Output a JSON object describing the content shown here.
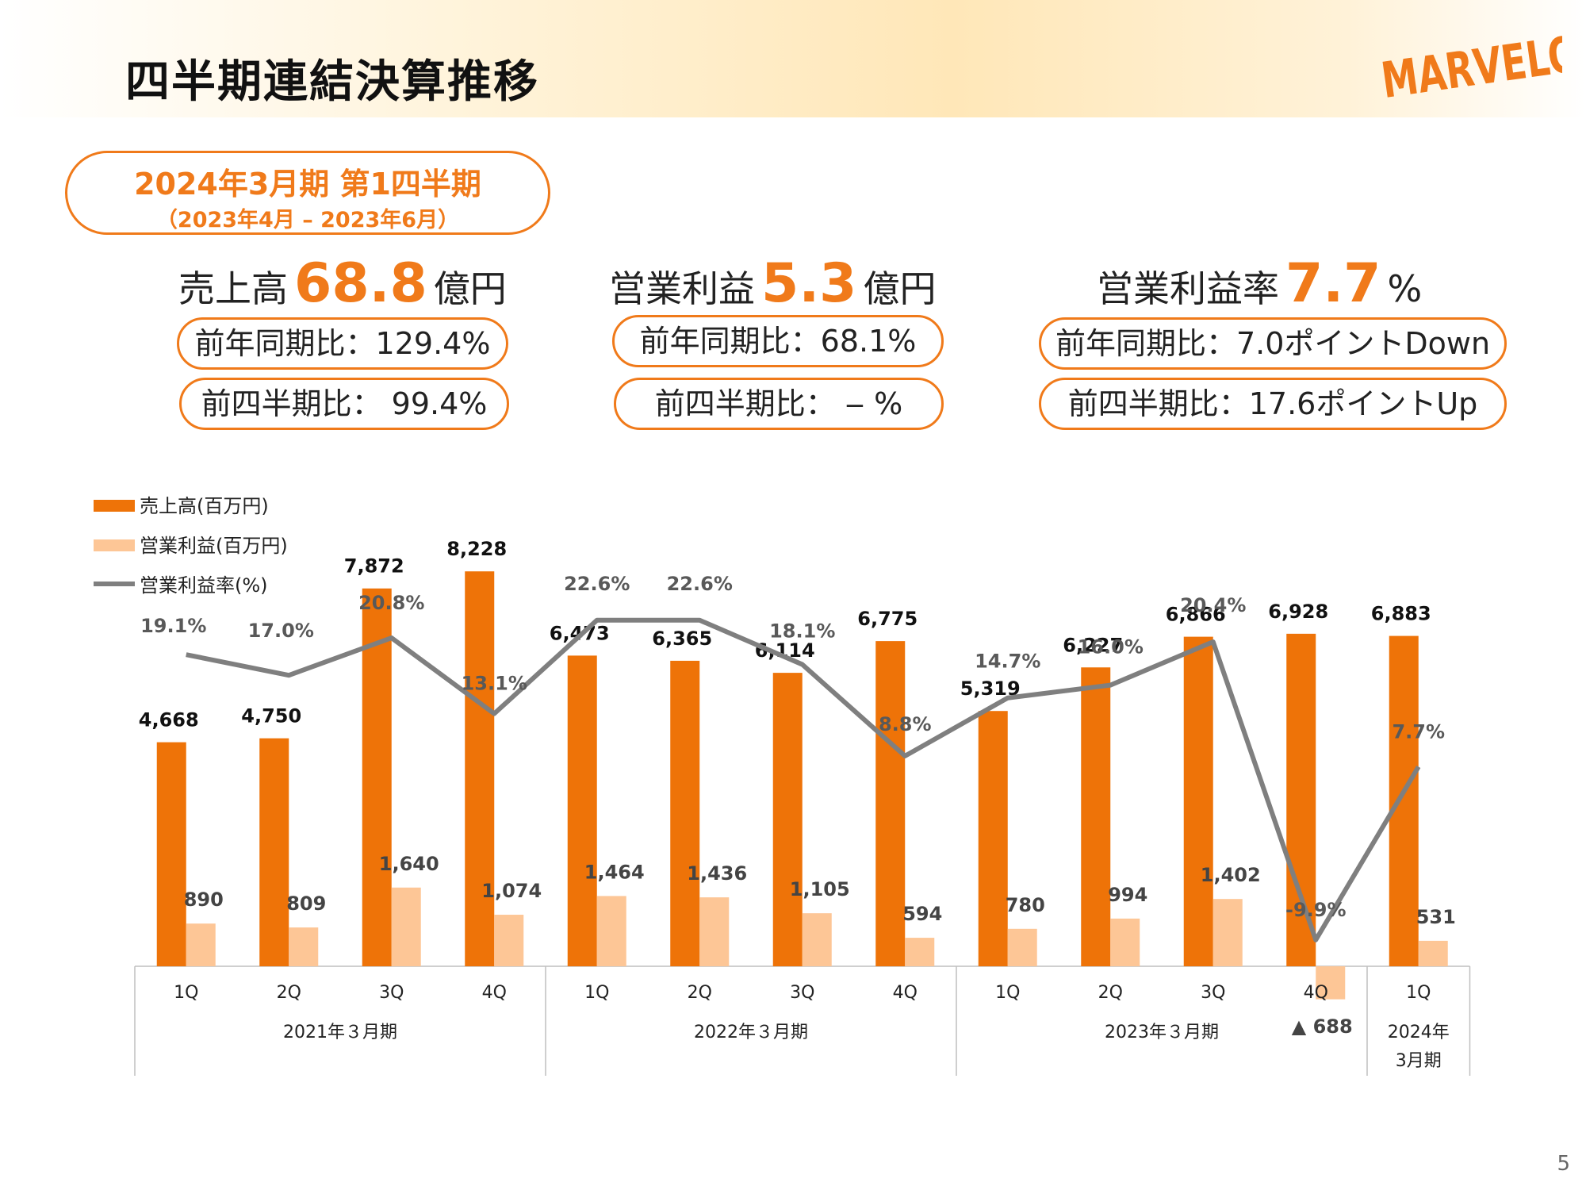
{
  "header": {
    "title": "四半期連結決算推移",
    "logo_text": "MARVELOUS!"
  },
  "period": {
    "main": "2024年3月期 第1四半期",
    "sub": "（2023年4月 – 2023年6月）"
  },
  "kpis": [
    {
      "label": "売上高",
      "value": "68.8",
      "unit": "億円",
      "yoy": "前年同期比：129.4%",
      "qoq": "前四半期比： 99.4%"
    },
    {
      "label": "営業利益",
      "value": "5.3",
      "unit": "億円",
      "yoy": "前年同期比：68.1%",
      "qoq": "前四半期比： ‒ %"
    },
    {
      "label": "営業利益率",
      "value": "7.7",
      "unit": "%",
      "yoy": "前年同期比：7.0ポイントDown",
      "qoq": "前四半期比：17.6ポイントUp"
    }
  ],
  "colors": {
    "accent": "#f07a1a",
    "sales": "#ee7308",
    "profit": "#fdc696",
    "margin_line": "#7f7f7f"
  },
  "chart_data": {
    "type": "bar",
    "categories": [
      "1Q",
      "2Q",
      "3Q",
      "4Q",
      "1Q",
      "2Q",
      "3Q",
      "4Q",
      "1Q",
      "2Q",
      "3Q",
      "4Q",
      "1Q"
    ],
    "groups": [
      {
        "label": "2021年３月期",
        "start": 0,
        "end": 3
      },
      {
        "label": "2022年３月期",
        "start": 4,
        "end": 7
      },
      {
        "label": "2023年３月期",
        "start": 8,
        "end": 11
      },
      {
        "label": "2024年\n3月期",
        "start": 12,
        "end": 12
      }
    ],
    "series": [
      {
        "name": "売上高(百万円)",
        "type": "bar",
        "values": [
          4668,
          4750,
          7872,
          8228,
          6473,
          6365,
          6114,
          6775,
          5319,
          6227,
          6866,
          6928,
          6883
        ],
        "labels": [
          "4,668",
          "4,750",
          "7,872",
          "8,228",
          "6,473",
          "6,365",
          "6,114",
          "6,775",
          "5,319",
          "6,227",
          "6,866",
          "6,928",
          "6,883"
        ]
      },
      {
        "name": "営業利益(百万円)",
        "type": "bar",
        "values": [
          890,
          809,
          1640,
          1074,
          1464,
          1436,
          1105,
          594,
          780,
          994,
          1402,
          -688,
          531
        ],
        "labels": [
          "890",
          "809",
          "1,640",
          "1,074",
          "1,464",
          "1,436",
          "1,105",
          "594",
          "780",
          "994",
          "1,402",
          "▲ 688",
          "531"
        ]
      },
      {
        "name": "営業利益率(%)",
        "type": "line",
        "values": [
          19.1,
          17.0,
          20.8,
          13.1,
          22.6,
          22.6,
          18.1,
          8.8,
          14.7,
          16.0,
          20.4,
          -9.9,
          7.7
        ],
        "labels": [
          "19.1%",
          "17.0%",
          "20.8%",
          "13.1%",
          "22.6%",
          "22.6%",
          "18.1%",
          "8.8%",
          "14.7%",
          "16.0%",
          "20.4%",
          "-9.9%",
          "7.7%"
        ]
      }
    ]
  },
  "page_number": "5"
}
